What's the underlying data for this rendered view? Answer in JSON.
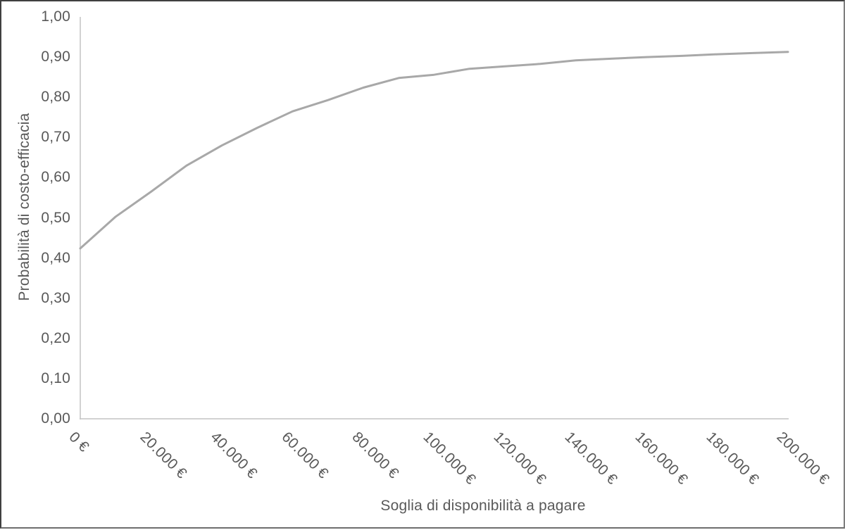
{
  "chart_data": {
    "type": "line",
    "title": "",
    "xlabel": "Soglia di disponibilità a pagare",
    "ylabel": "Probabilità di costo-efficacia",
    "xlim": [
      0,
      200000
    ],
    "ylim": [
      0,
      1
    ],
    "grid": false,
    "legend_position": "none",
    "x_ticks": [
      {
        "value": 0,
        "label": "0 €"
      },
      {
        "value": 20000,
        "label": "20.000 €"
      },
      {
        "value": 40000,
        "label": "40.000 €"
      },
      {
        "value": 60000,
        "label": "60.000 €"
      },
      {
        "value": 80000,
        "label": "80.000 €"
      },
      {
        "value": 100000,
        "label": "100.000 €"
      },
      {
        "value": 120000,
        "label": "120.000 €"
      },
      {
        "value": 140000,
        "label": "140.000 €"
      },
      {
        "value": 160000,
        "label": "160.000 €"
      },
      {
        "value": 180000,
        "label": "180.000 €"
      },
      {
        "value": 200000,
        "label": "200.000 €"
      }
    ],
    "y_ticks": [
      {
        "value": 0.0,
        "label": "0,00"
      },
      {
        "value": 0.1,
        "label": "0,10"
      },
      {
        "value": 0.2,
        "label": "0,20"
      },
      {
        "value": 0.3,
        "label": "0,30"
      },
      {
        "value": 0.4,
        "label": "0,40"
      },
      {
        "value": 0.5,
        "label": "0,50"
      },
      {
        "value": 0.6,
        "label": "0,60"
      },
      {
        "value": 0.7,
        "label": "0,70"
      },
      {
        "value": 0.8,
        "label": "0,80"
      },
      {
        "value": 0.9,
        "label": "0,90"
      },
      {
        "value": 1.0,
        "label": "1,00"
      }
    ],
    "series": [
      {
        "name": "Probabilità di costo-efficacia",
        "x": [
          0,
          10000,
          20000,
          30000,
          40000,
          50000,
          60000,
          70000,
          80000,
          90000,
          100000,
          110000,
          120000,
          130000,
          140000,
          150000,
          160000,
          170000,
          180000,
          190000,
          200000
        ],
        "values": [
          0.424,
          0.503,
          0.565,
          0.63,
          0.68,
          0.724,
          0.765,
          0.793,
          0.824,
          0.848,
          0.856,
          0.871,
          0.877,
          0.883,
          0.892,
          0.896,
          0.9,
          0.903,
          0.907,
          0.91,
          0.913
        ]
      }
    ],
    "colors": {
      "line": "#a8a8a8",
      "axis": "#c4c4c4",
      "text": "#595959",
      "background": "#ffffff"
    }
  }
}
